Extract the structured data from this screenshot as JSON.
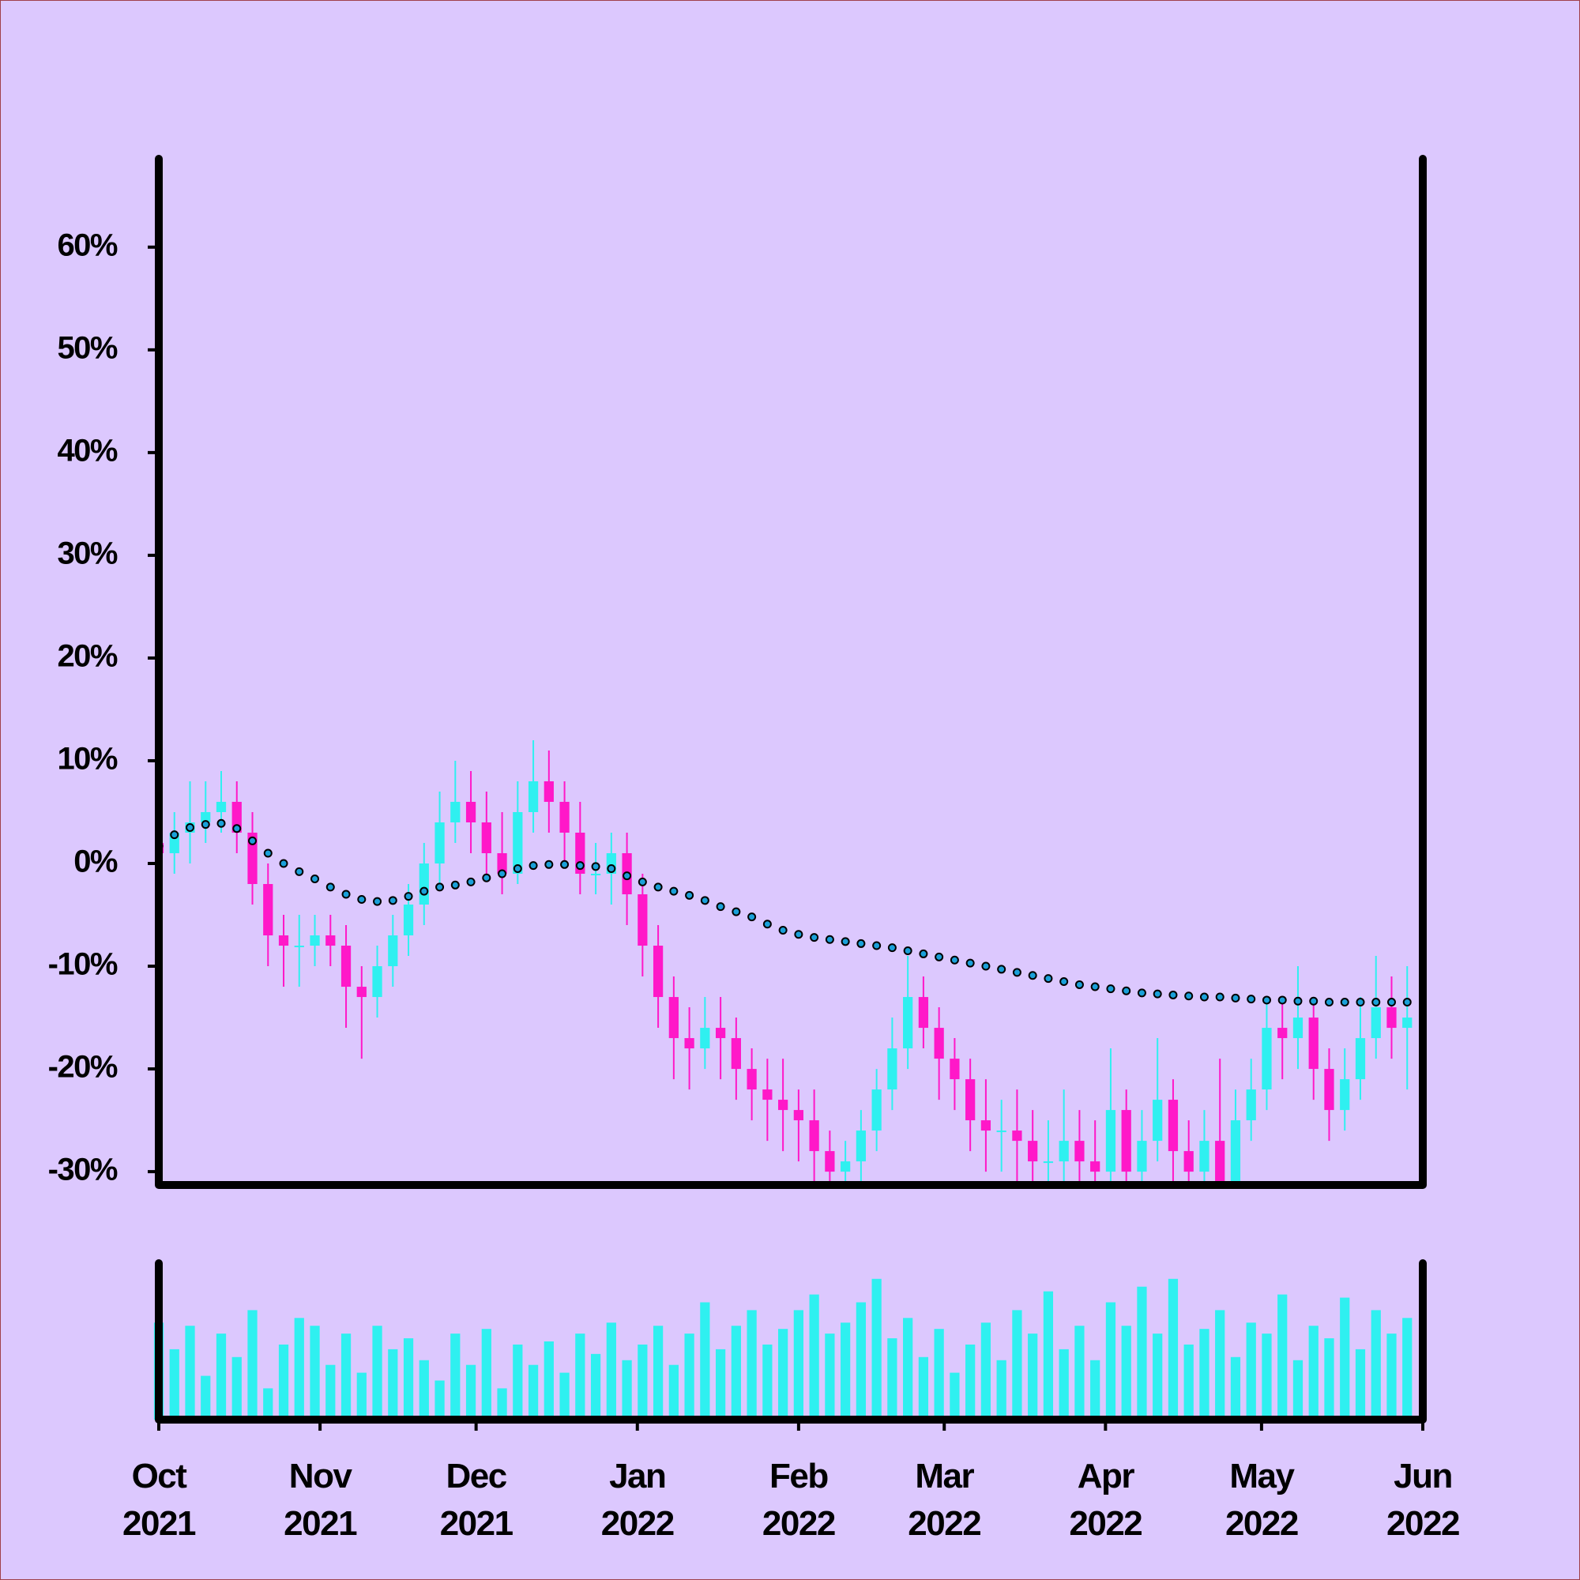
{
  "chart_data": {
    "type": "candlestick",
    "background": "#dcc8fe",
    "up_color": "#2ff0f0",
    "down_color": "#ff18c8",
    "volume_color": "#2ff0f0",
    "x": [
      "2021-10-01",
      "2021-10-04",
      "2021-10-07",
      "2021-10-10",
      "2021-10-13",
      "2021-10-16",
      "2021-10-19",
      "2021-10-22",
      "2021-10-25",
      "2021-10-28",
      "2021-10-31",
      "2021-11-03",
      "2021-11-06",
      "2021-11-09",
      "2021-11-12",
      "2021-11-15",
      "2021-11-18",
      "2021-11-21",
      "2021-11-24",
      "2021-11-27",
      "2021-11-30",
      "2021-12-03",
      "2021-12-06",
      "2021-12-09",
      "2021-12-12",
      "2021-12-15",
      "2021-12-18",
      "2021-12-21",
      "2021-12-24",
      "2021-12-27",
      "2021-12-30",
      "2022-01-02",
      "2022-01-05",
      "2022-01-08",
      "2022-01-11",
      "2022-01-14",
      "2022-01-17",
      "2022-01-20",
      "2022-01-23",
      "2022-01-26",
      "2022-01-29",
      "2022-02-01",
      "2022-02-04",
      "2022-02-07",
      "2022-02-10",
      "2022-02-13",
      "2022-02-16",
      "2022-02-19",
      "2022-02-22",
      "2022-02-25",
      "2022-02-28",
      "2022-03-03",
      "2022-03-06",
      "2022-03-09",
      "2022-03-12",
      "2022-03-15",
      "2022-03-18",
      "2022-03-21",
      "2022-03-24",
      "2022-03-27",
      "2022-03-30",
      "2022-04-02",
      "2022-04-05",
      "2022-04-08",
      "2022-04-11",
      "2022-04-14",
      "2022-04-17",
      "2022-04-20",
      "2022-04-23",
      "2022-04-26",
      "2022-04-29",
      "2022-05-02",
      "2022-05-05",
      "2022-05-08",
      "2022-05-11",
      "2022-05-14",
      "2022-05-17",
      "2022-05-20",
      "2022-05-23",
      "2022-05-26",
      "2022-05-29"
    ],
    "open": [
      2,
      1,
      3,
      4,
      5,
      6,
      3,
      -2,
      -7,
      -8,
      -8,
      -7,
      -8,
      -12,
      -13,
      -10,
      -7,
      -4,
      0,
      4,
      6,
      4,
      1,
      -1,
      5,
      8,
      6,
      3,
      -1,
      -1,
      1,
      -3,
      -8,
      -13,
      -17,
      -18,
      -16,
      -17,
      -20,
      -22,
      -23,
      -24,
      -25,
      -28,
      -30,
      -29,
      -26,
      -22,
      -18,
      -13,
      -16,
      -19,
      -21,
      -25,
      -26,
      -26,
      -27,
      -29,
      -29,
      -27,
      -29,
      -30,
      -24,
      -30,
      -27,
      -23,
      -28,
      -30,
      -27,
      -31,
      -25,
      -22,
      -16,
      -17,
      -15,
      -20,
      -24,
      -21,
      -17,
      -14,
      -16
    ],
    "high": [
      7,
      5,
      8,
      8,
      9,
      8,
      5,
      0,
      -5,
      -5,
      -5,
      -5,
      -6,
      -10,
      -8,
      -5,
      -2,
      2,
      7,
      10,
      9,
      7,
      5,
      8,
      12,
      11,
      8,
      6,
      2,
      3,
      3,
      -1,
      -6,
      -11,
      -14,
      -13,
      -13,
      -15,
      -18,
      -19,
      -19,
      -22,
      -22,
      -26,
      -27,
      -24,
      -20,
      -15,
      -9,
      -11,
      -14,
      -17,
      -19,
      -21,
      -23,
      -22,
      -24,
      -25,
      -22,
      -24,
      -25,
      -18,
      -22,
      -24,
      -17,
      -21,
      -25,
      -24,
      -19,
      -22,
      -19,
      -13,
      -13,
      -10,
      -13,
      -18,
      -18,
      -13,
      -9,
      -11,
      -10
    ],
    "low": [
      -3,
      -1,
      0,
      2,
      3,
      1,
      -4,
      -10,
      -12,
      -12,
      -10,
      -10,
      -16,
      -19,
      -15,
      -12,
      -9,
      -6,
      -2,
      2,
      1,
      -1,
      -3,
      -2,
      3,
      3,
      0,
      -3,
      -3,
      -4,
      -6,
      -11,
      -16,
      -21,
      -22,
      -20,
      -21,
      -23,
      -25,
      -27,
      -28,
      -29,
      -32,
      -34,
      -33,
      -32,
      -28,
      -24,
      -20,
      -18,
      -23,
      -24,
      -28,
      -30,
      -30,
      -31,
      -33,
      -32,
      -32,
      -33,
      -34,
      -33,
      -33,
      -33,
      -29,
      -32,
      -33,
      -33,
      -34,
      -34,
      -27,
      -24,
      -21,
      -20,
      -23,
      -27,
      -26,
      -23,
      -19,
      -19,
      -22
    ],
    "close": [
      1,
      3,
      4,
      5,
      6,
      3,
      -2,
      -7,
      -8,
      -8,
      -7,
      -8,
      -12,
      -13,
      -10,
      -7,
      -4,
      0,
      4,
      6,
      4,
      1,
      -1,
      5,
      8,
      6,
      3,
      -1,
      -1,
      1,
      -3,
      -8,
      -13,
      -17,
      -18,
      -16,
      -17,
      -20,
      -22,
      -23,
      -24,
      -25,
      -28,
      -30,
      -29,
      -26,
      -22,
      -18,
      -13,
      -16,
      -19,
      -21,
      -25,
      -26,
      -26,
      -27,
      -29,
      -29,
      -27,
      -29,
      -30,
      -24,
      -30,
      -27,
      -23,
      -28,
      -30,
      -27,
      -31,
      -25,
      -22,
      -16,
      -17,
      -15,
      -20,
      -24,
      -21,
      -17,
      -14,
      -16,
      -15
    ],
    "volume": [
      62,
      45,
      60,
      28,
      55,
      40,
      70,
      20,
      48,
      65,
      60,
      35,
      55,
      30,
      60,
      45,
      52,
      38,
      25,
      55,
      35,
      58,
      20,
      48,
      35,
      50,
      30,
      55,
      42,
      62,
      38,
      48,
      60,
      35,
      55,
      75,
      45,
      60,
      70,
      48,
      58,
      70,
      80,
      55,
      62,
      75,
      90,
      52,
      65,
      40,
      58,
      30,
      48,
      62,
      38,
      70,
      55,
      82,
      45,
      60,
      38,
      75,
      60,
      85,
      55,
      90,
      48,
      58,
      70,
      40,
      62,
      55,
      80,
      38,
      60,
      52,
      78,
      45,
      70,
      55,
      65
    ],
    "vlim": [
      0,
      100
    ],
    "moving_average": {
      "color": "#1aa0d8",
      "values": [
        1.7,
        2.8,
        3.5,
        3.8,
        3.9,
        3.4,
        2.2,
        1,
        0,
        -0.8,
        -1.5,
        -2.3,
        -3,
        -3.5,
        -3.7,
        -3.6,
        -3.2,
        -2.7,
        -2.3,
        -2.1,
        -1.8,
        -1.4,
        -1,
        -0.5,
        -0.2,
        -0.1,
        -0.1,
        -0.2,
        -0.3,
        -0.5,
        -1.2,
        -1.8,
        -2.3,
        -2.7,
        -3.1,
        -3.6,
        -4.2,
        -4.7,
        -5.2,
        -5.9,
        -6.5,
        -6.9,
        -7.2,
        -7.4,
        -7.6,
        -7.8,
        -8,
        -8.2,
        -8.5,
        -8.8,
        -9.1,
        -9.4,
        -9.7,
        -10,
        -10.3,
        -10.6,
        -10.9,
        -11.2,
        -11.5,
        -11.8,
        -12,
        -12.2,
        -12.4,
        -12.6,
        -12.7,
        -12.8,
        -12.9,
        -13,
        -13,
        -13.1,
        -13.2,
        -13.3,
        -13.3,
        -13.4,
        -13.4,
        -13.5,
        -13.5,
        -13.5,
        -13.5,
        -13.5,
        -13.5
      ]
    },
    "xlim": [
      "2021-10-01",
      "2022-06-01"
    ],
    "xticks": [
      {
        "value": "2021-10-01",
        "label": "Oct 2021"
      },
      {
        "value": "2021-11-01",
        "label": "Nov 2021"
      },
      {
        "value": "2021-12-01",
        "label": "Dec 2021"
      },
      {
        "value": "2022-01-01",
        "label": "Jan 2022"
      },
      {
        "value": "2022-02-01",
        "label": "Feb 2022"
      },
      {
        "value": "2022-03-01",
        "label": "Mar 2022"
      },
      {
        "value": "2022-04-01",
        "label": "Apr 2022"
      },
      {
        "value": "2022-05-01",
        "label": "May 2022"
      },
      {
        "value": "2022-06-01",
        "label": "Jun 2022"
      }
    ],
    "ylim": [
      -31.3,
      68.6
    ],
    "yticks": [
      {
        "value": -30,
        "label": "-30%"
      },
      {
        "value": -20,
        "label": "-20%"
      },
      {
        "value": -10,
        "label": "-10%"
      },
      {
        "value": 0,
        "label": "0%"
      },
      {
        "value": 10,
        "label": "10%"
      },
      {
        "value": 20,
        "label": "20%"
      },
      {
        "value": 30,
        "label": "30%"
      },
      {
        "value": 40,
        "label": "40%"
      },
      {
        "value": 50,
        "label": "50%"
      },
      {
        "value": 60,
        "label": "60%"
      }
    ]
  }
}
